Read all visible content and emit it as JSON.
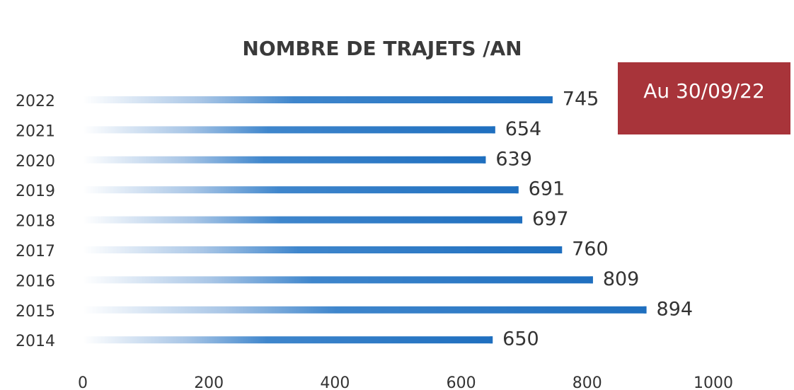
{
  "chart_data": {
    "type": "bar",
    "orientation": "horizontal",
    "title": "NOMBRE DE TRAJETS /AN",
    "annotation": "Au 30/09/22",
    "categories": [
      "2022",
      "2021",
      "2020",
      "2019",
      "2018",
      "2017",
      "2016",
      "2015",
      "2014"
    ],
    "values": [
      745,
      654,
      639,
      691,
      697,
      760,
      809,
      894,
      650
    ],
    "color": "#1f6fbf",
    "xlim": [
      0,
      1000
    ],
    "xticks": [
      0,
      200,
      400,
      600,
      800,
      1000
    ],
    "grid": false
  }
}
